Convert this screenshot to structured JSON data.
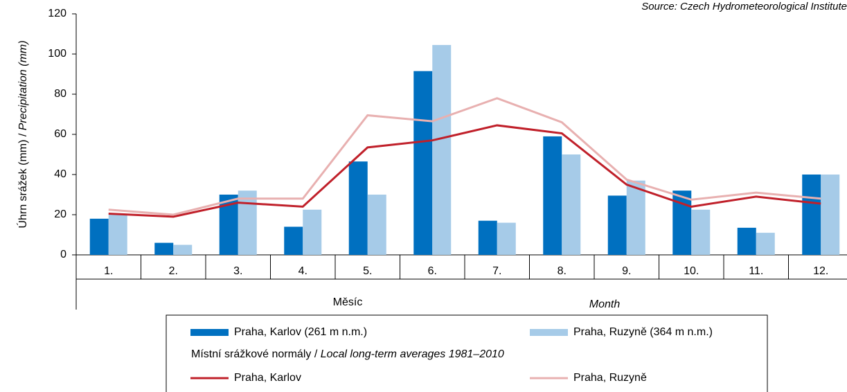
{
  "chart_data": {
    "type": "bar",
    "source": "Source: Czech Hydrometeorological Institute",
    "y_label": "Úhrn srážek (mm) / ",
    "y_label_en": "Precipitation (mm)",
    "x_label": "Měsíc",
    "x_label_en": "Month",
    "legend_subtitle": "Místní srážkové normály / ",
    "legend_subtitle_en": "Local long-term averages 1981–2010",
    "categories": [
      "1.",
      "2.",
      "3.",
      "4.",
      "5.",
      "6.",
      "7.",
      "8.",
      "9.",
      "10.",
      "11.",
      "12."
    ],
    "ylim": [
      0,
      120
    ],
    "yticks": [
      0,
      20,
      40,
      60,
      80,
      100,
      120
    ],
    "series": [
      {
        "name": "Praha, Karlov (261 m n.m.)",
        "type": "bar",
        "color": "#0070c0",
        "values": [
          18,
          6,
          30,
          14,
          46.5,
          91.5,
          17,
          59,
          29.5,
          32,
          13.5,
          40
        ]
      },
      {
        "name": "Praha, Ruzyně (364 m n.m.)",
        "type": "bar",
        "color": "#a6cbe8",
        "values": [
          20,
          5,
          32,
          22.5,
          30,
          104.5,
          16,
          50,
          37,
          22.5,
          11,
          40
        ]
      },
      {
        "name": "Praha, Karlov",
        "type": "line",
        "color": "#c0202a",
        "values": [
          20.5,
          19,
          26,
          24,
          53.5,
          57,
          64.5,
          60.5,
          35,
          24,
          29,
          25.5
        ]
      },
      {
        "name": "Praha, Ruzyně",
        "type": "line",
        "color": "#e8b0b0",
        "values": [
          22.5,
          20,
          28,
          28,
          69.5,
          66.5,
          78,
          66,
          37.5,
          27.5,
          31,
          28
        ]
      }
    ]
  }
}
